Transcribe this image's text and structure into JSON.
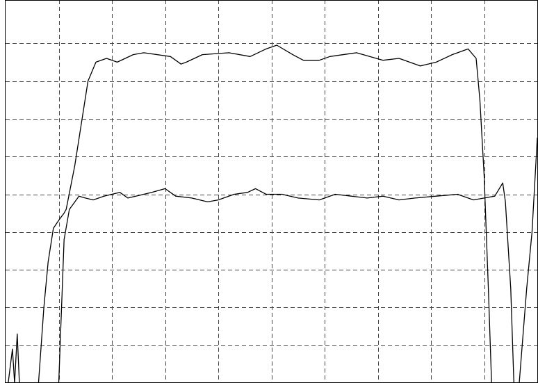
{
  "chart_data": {
    "type": "line",
    "title": "",
    "xlabel": "",
    "ylabel": "",
    "xlim": [
      0,
      10
    ],
    "ylim": [
      0,
      10
    ],
    "grid": true,
    "grid_style": "dashed",
    "legend": "none",
    "colors": {
      "background": "#ffffff",
      "grid": "#444444",
      "trace": "#000000",
      "border": "#000000"
    },
    "series": [
      {
        "values": [
          [
            0.05,
            0.0
          ],
          [
            0.13,
            0.9
          ],
          [
            0.17,
            0.0
          ],
          [
            0.22,
            1.3
          ],
          [
            0.26,
            0.0
          ],
          [
            0.62,
            0.0
          ],
          [
            0.72,
            2.0
          ],
          [
            0.8,
            3.2
          ],
          [
            0.9,
            4.1
          ],
          [
            1.02,
            4.35
          ],
          [
            1.1,
            4.5
          ],
          [
            1.14,
            4.6
          ],
          [
            1.3,
            5.75
          ],
          [
            1.55,
            8.0
          ],
          [
            1.7,
            8.5
          ],
          [
            1.9,
            8.6
          ],
          [
            2.1,
            8.5
          ],
          [
            2.4,
            8.7
          ],
          [
            2.6,
            8.75
          ],
          [
            3.1,
            8.65
          ],
          [
            3.3,
            8.45
          ],
          [
            3.4,
            8.5
          ],
          [
            3.7,
            8.7
          ],
          [
            4.2,
            8.75
          ],
          [
            4.6,
            8.65
          ],
          [
            4.9,
            8.85
          ],
          [
            5.1,
            8.95
          ],
          [
            5.4,
            8.7
          ],
          [
            5.6,
            8.55
          ],
          [
            5.9,
            8.55
          ],
          [
            6.1,
            8.65
          ],
          [
            6.6,
            8.75
          ],
          [
            7.1,
            8.55
          ],
          [
            7.4,
            8.6
          ],
          [
            7.8,
            8.4
          ],
          [
            8.1,
            8.5
          ],
          [
            8.4,
            8.7
          ],
          [
            8.7,
            8.85
          ],
          [
            8.85,
            8.6
          ],
          [
            8.92,
            7.5
          ],
          [
            9.0,
            5.5
          ],
          [
            9.08,
            2.5
          ],
          [
            9.14,
            0.0
          ]
        ]
      },
      {
        "values": [
          [
            1.0,
            0.0
          ],
          [
            1.1,
            3.8
          ],
          [
            1.2,
            4.6
          ],
          [
            1.38,
            4.95
          ],
          [
            1.5,
            4.9
          ],
          [
            1.65,
            4.85
          ],
          [
            1.85,
            4.95
          ],
          [
            2.15,
            5.05
          ],
          [
            2.3,
            4.9
          ],
          [
            2.45,
            4.95
          ],
          [
            2.75,
            5.05
          ],
          [
            3.0,
            5.15
          ],
          [
            3.2,
            4.95
          ],
          [
            3.5,
            4.9
          ],
          [
            3.8,
            4.8
          ],
          [
            4.0,
            4.85
          ],
          [
            4.3,
            5.0
          ],
          [
            4.55,
            5.05
          ],
          [
            4.7,
            5.15
          ],
          [
            4.9,
            5.0
          ],
          [
            5.2,
            5.0
          ],
          [
            5.5,
            4.9
          ],
          [
            5.9,
            4.85
          ],
          [
            6.2,
            5.0
          ],
          [
            6.5,
            4.95
          ],
          [
            6.8,
            4.9
          ],
          [
            7.1,
            4.95
          ],
          [
            7.4,
            4.85
          ],
          [
            7.7,
            4.9
          ],
          [
            8.1,
            4.95
          ],
          [
            8.5,
            5.0
          ],
          [
            8.8,
            4.85
          ],
          [
            9.0,
            4.9
          ],
          [
            9.2,
            4.95
          ],
          [
            9.35,
            5.3
          ],
          [
            9.4,
            4.8
          ],
          [
            9.5,
            2.5
          ],
          [
            9.56,
            0.0
          ],
          [
            9.66,
            0.0
          ],
          [
            9.8,
            2.5
          ],
          [
            9.9,
            4.0
          ],
          [
            10.0,
            6.5
          ]
        ]
      }
    ]
  }
}
